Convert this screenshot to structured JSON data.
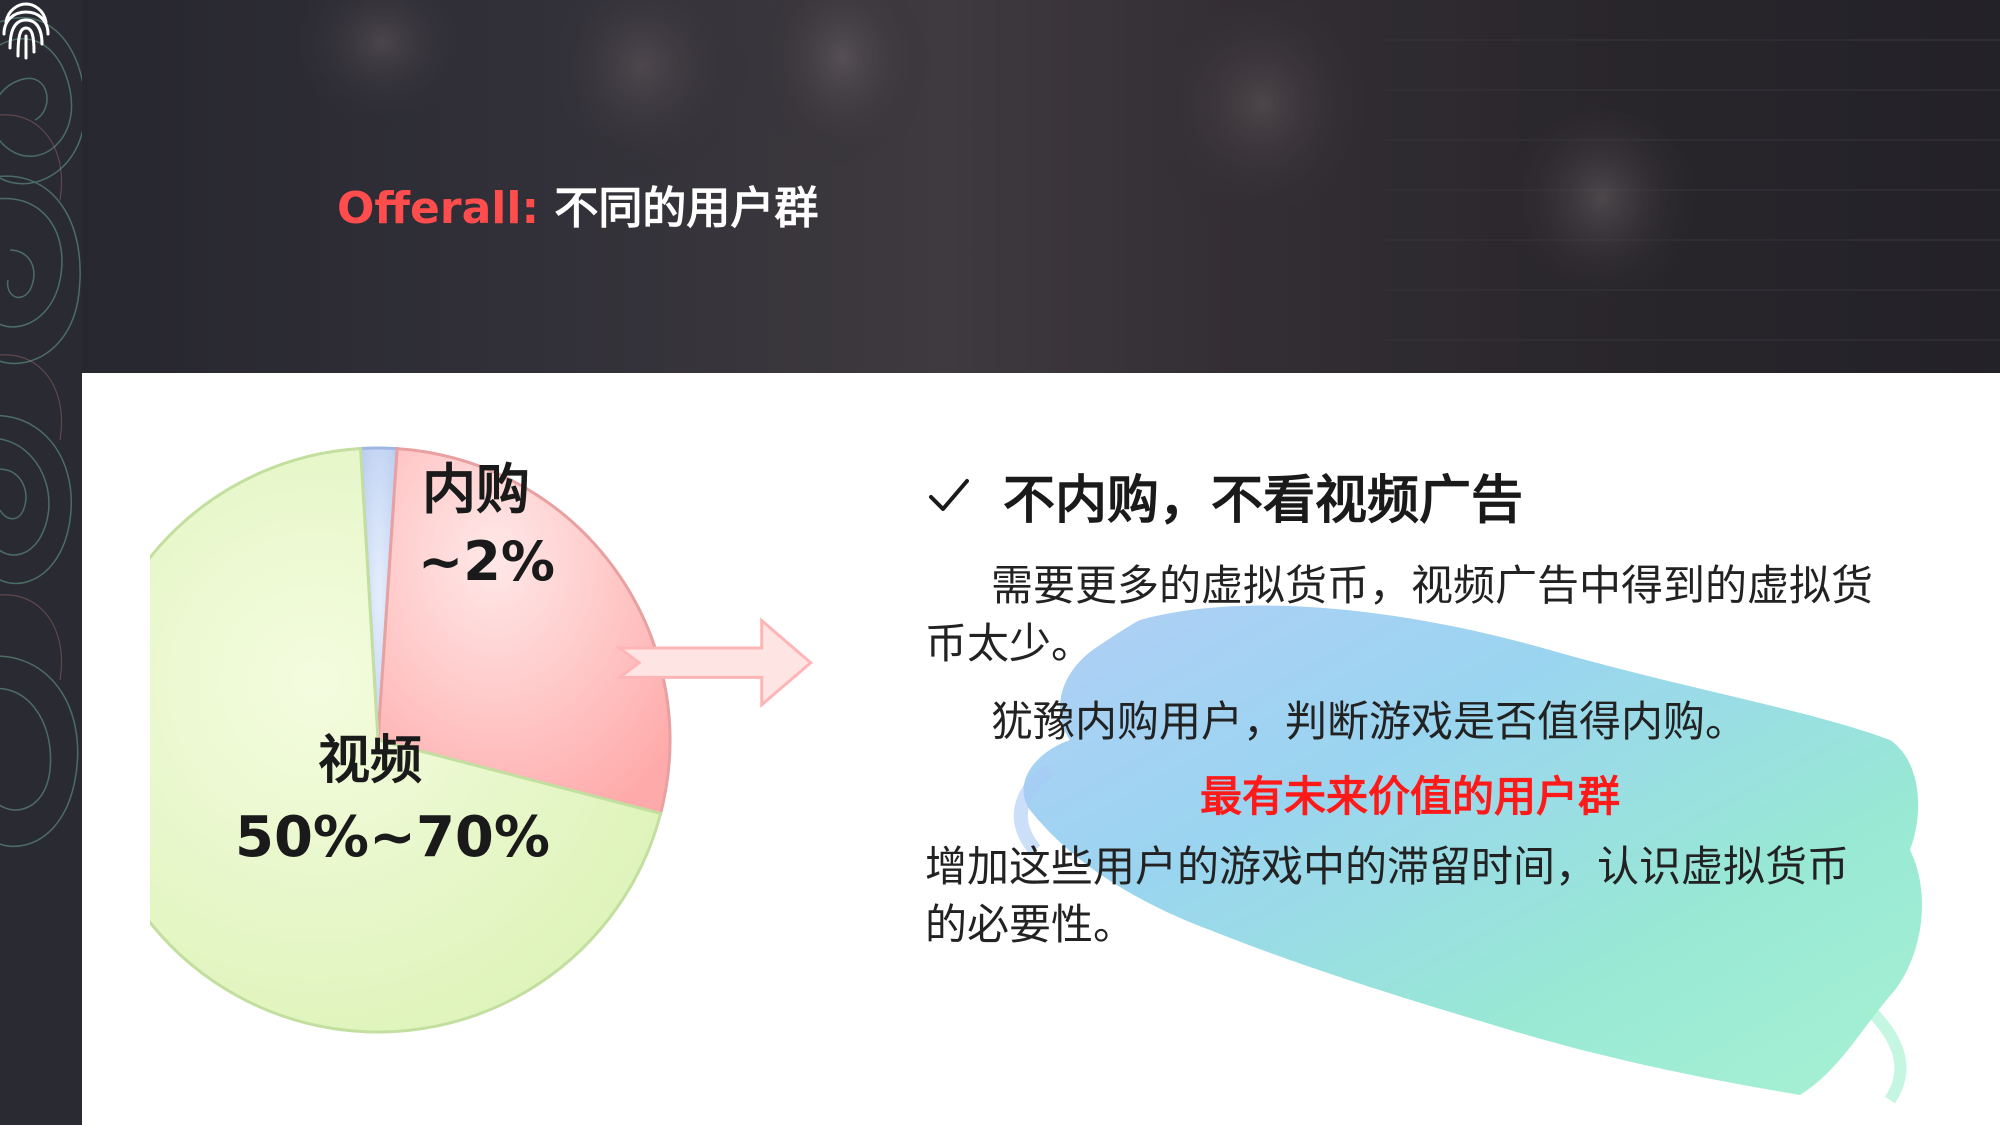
{
  "header": {
    "title_accent": "Offerall:",
    "title_rest": " 不同的用户群"
  },
  "pie": {
    "segments": [
      {
        "label": "内购",
        "value_text": "~2%",
        "value": 2,
        "color": "#c9d8f2"
      },
      {
        "label": "",
        "value": 28,
        "color": "#ffb3b3"
      },
      {
        "label": "视频",
        "value_text": "50%~70%",
        "value": 70,
        "color": "#e4f7c4"
      }
    ],
    "labels": {
      "inapp_name": "内购",
      "inapp_value": "~2%",
      "video_name": "视频",
      "video_value": "50%~70%"
    }
  },
  "content": {
    "heading": "不内购，不看视频广告",
    "para1": "需要更多的虚拟货币，视频广告中得到的虚拟货币太少。",
    "para2": "犹豫内购用户，判断游戏是否值得内购。",
    "highlight": "最有未来价值的用户群",
    "para3": "增加这些用户的游戏中的滞留时间，认识虚拟货币的必要性。"
  },
  "icons": {
    "check": "checkmark-icon",
    "arrow": "right-arrow-icon",
    "fingerprint": "fingerprint-icon"
  },
  "colors": {
    "accent_red": "#ff4d4d",
    "highlight_red": "#ff1a1a",
    "dark_strip": "#2a2a33"
  }
}
